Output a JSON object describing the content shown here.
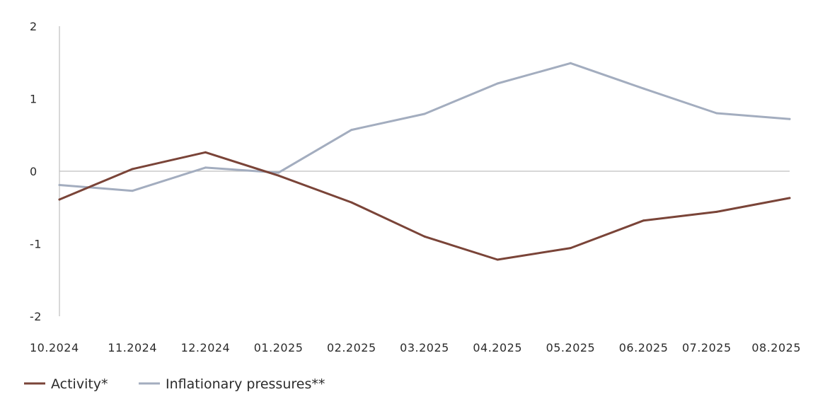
{
  "chart_data": {
    "type": "line",
    "title": "",
    "xlabel": "",
    "ylabel": "",
    "categories": [
      "10.2024",
      "11.2024",
      "12.2024",
      "01.2025",
      "02.2025",
      "03.2025",
      "04.2025",
      "05.2025",
      "06.2025",
      "07.2025",
      "08.2025"
    ],
    "category_labels": [
      "10.2024",
      "11.2024",
      "12.2024",
      "01.2025",
      "02.2025",
      "03.2025",
      "04.2025",
      "05.2025",
      "06.2025",
      "07.2025",
      "08.2025"
    ],
    "ylim": [
      -2,
      2
    ],
    "yticks": [
      "2",
      "1",
      "0",
      "-1",
      "-2"
    ],
    "ytick_values": [
      2,
      1,
      0,
      -1,
      -2
    ],
    "grid": false,
    "legend_position": "bottom-left",
    "series": [
      {
        "name": "Activity*",
        "color": "#7a4438",
        "values": [
          -0.39,
          0.03,
          0.26,
          -0.06,
          -0.43,
          -0.9,
          -1.22,
          -1.06,
          -0.68,
          -0.56,
          -0.37
        ]
      },
      {
        "name": "Inflationary pressures**",
        "color": "#a3adbf",
        "values": [
          -0.19,
          -0.27,
          0.05,
          -0.02,
          0.57,
          0.79,
          1.21,
          1.49,
          1.14,
          0.8,
          0.72
        ]
      }
    ]
  }
}
